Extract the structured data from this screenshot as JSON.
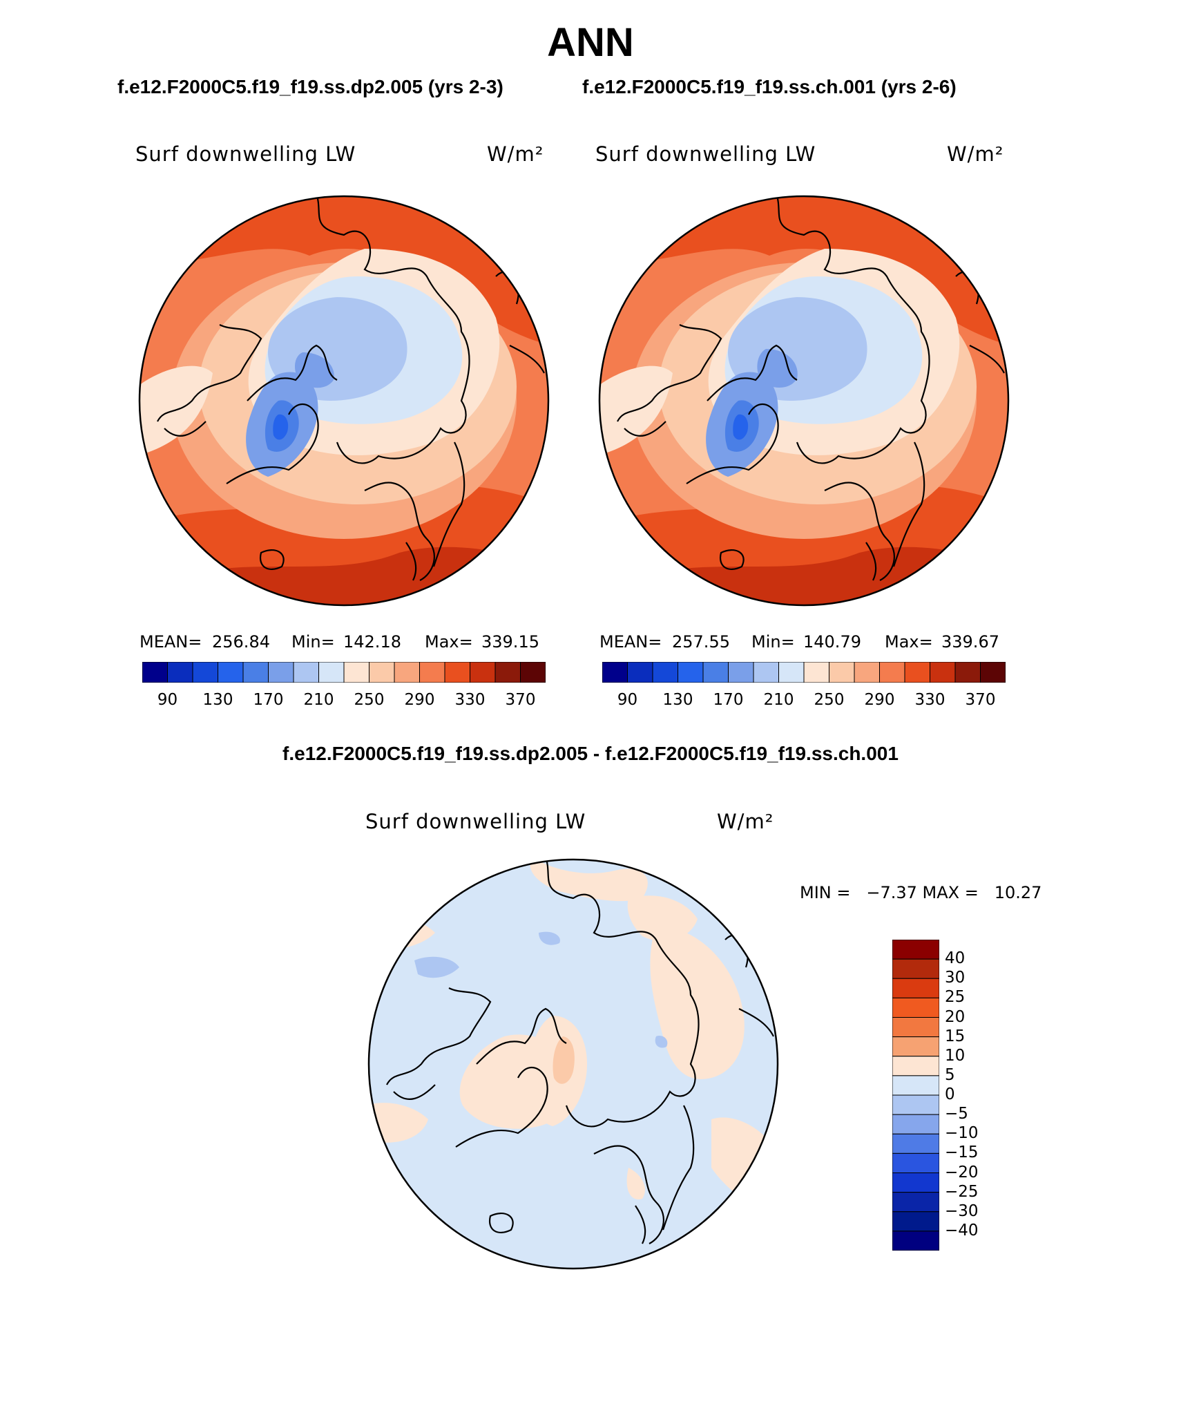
{
  "header": {
    "title": "ANN",
    "left_case": "f.e12.F2000C5.f19_f19.ss.dp2.005 (yrs 2-3)",
    "right_case": "f.e12.F2000C5.f19_f19.ss.ch.001 (yrs 2-6)"
  },
  "panels": {
    "left": {
      "variable": "Surf downwelling LW",
      "units": "W/m²",
      "mean_label": "MEAN=",
      "mean": "256.84",
      "min_label": "Min=",
      "min": "142.18",
      "max_label": "Max=",
      "max": "339.15"
    },
    "right": {
      "variable": "Surf downwelling LW",
      "units": "W/m²",
      "mean_label": "MEAN=",
      "mean": "257.55",
      "min_label": "Min=",
      "min": "140.79",
      "max_label": "Max=",
      "max": "339.67"
    },
    "diff": {
      "title": "f.e12.F2000C5.f19_f19.ss.dp2.005 - f.e12.F2000C5.f19_f19.ss.ch.001",
      "variable": "Surf downwelling LW",
      "units": "W/m²",
      "minmax": "MIN =   −7.37 MAX =   10.27"
    }
  },
  "chart_data": [
    {
      "type": "heatmap",
      "title": "Surf downwelling LW",
      "projection": "north polar stereographic",
      "units": "W/m²",
      "mean": 256.84,
      "min": 142.18,
      "max": 339.15,
      "colorbar_levels": [
        90,
        110,
        130,
        150,
        170,
        190,
        210,
        230,
        250,
        270,
        290,
        310,
        330,
        350,
        370
      ],
      "colorbar_tick_labels": [
        "90",
        "130",
        "170",
        "210",
        "250",
        "290",
        "330",
        "370"
      ]
    },
    {
      "type": "heatmap",
      "title": "Surf downwelling LW",
      "projection": "north polar stereographic",
      "units": "W/m²",
      "mean": 257.55,
      "min": 140.79,
      "max": 339.67,
      "colorbar_levels": [
        90,
        110,
        130,
        150,
        170,
        190,
        210,
        230,
        250,
        270,
        290,
        310,
        330,
        350,
        370
      ],
      "colorbar_tick_labels": [
        "90",
        "130",
        "170",
        "210",
        "250",
        "290",
        "330",
        "370"
      ]
    },
    {
      "type": "heatmap",
      "title": "Surf downwelling LW",
      "projection": "north polar stereographic",
      "units": "W/m²",
      "min": -7.37,
      "max": 10.27,
      "colorbar_levels": [
        "40",
        "30",
        "25",
        "20",
        "15",
        "10",
        "5",
        "0",
        "−5",
        "−10",
        "−15",
        "−20",
        "−25",
        "−30",
        "−40"
      ]
    }
  ],
  "colors": {
    "abs_scale": [
      "#00008b",
      "#0a2dbd",
      "#1448d8",
      "#2563eb",
      "#4a7fe6",
      "#7a9fe9",
      "#adc6f2",
      "#d6e6f8",
      "#fde5d3",
      "#fbcaa9",
      "#f8a67e",
      "#f47c4e",
      "#e9501f",
      "#c9310f",
      "#8b1a0a",
      "#5c0505"
    ],
    "diff_scale": [
      "#8b0000",
      "#b22a0c",
      "#da3b10",
      "#f05a20",
      "#f27840",
      "#f6a272",
      "#fde5d3",
      "#d6e6f8",
      "#adc6f2",
      "#86a6ec",
      "#4f7be6",
      "#2a55e0",
      "#1237cf",
      "#0a25a8",
      "#001a8c",
      "#000080"
    ]
  }
}
